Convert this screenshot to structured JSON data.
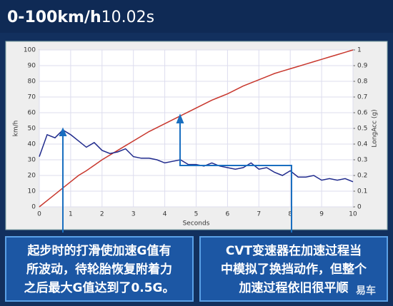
{
  "header": {
    "title": "0-100km/h",
    "value": "10.02s"
  },
  "chart_data": {
    "type": "line",
    "x": [
      0,
      0.25,
      0.5,
      0.75,
      1,
      1.25,
      1.5,
      1.75,
      2,
      2.25,
      2.5,
      2.75,
      3,
      3.25,
      3.5,
      3.75,
      4,
      4.25,
      4.5,
      4.75,
      5,
      5.25,
      5.5,
      5.75,
      6,
      6.25,
      6.5,
      6.75,
      7,
      7.25,
      7.5,
      7.75,
      8,
      8.25,
      8.5,
      8.75,
      9,
      9.25,
      9.5,
      9.75,
      10
    ],
    "xlabel": "Seconds",
    "ylabel": "km/h",
    "y2label": "LongAcc (g)",
    "xlim": [
      0,
      10
    ],
    "xticks": [
      0,
      1,
      2,
      3,
      4,
      5,
      6,
      7,
      8,
      9,
      10
    ],
    "ylim": [
      0,
      100
    ],
    "yticks": [
      0,
      10,
      20,
      30,
      40,
      50,
      60,
      70,
      80,
      90,
      100
    ],
    "y2lim": [
      0,
      1
    ],
    "y2ticks": [
      0,
      0.1,
      0.2,
      0.3,
      0.4,
      0.5,
      0.6,
      0.7,
      0.8,
      0.9,
      1
    ],
    "grid": true,
    "series": [
      {
        "color": "#c8372d",
        "values": [
          0,
          4,
          8,
          12,
          16,
          20,
          23,
          26.5,
          30,
          33,
          36,
          39,
          42,
          45,
          48,
          50.5,
          53,
          55.5,
          58,
          60.5,
          63,
          65.5,
          68,
          70,
          72,
          74.5,
          77,
          79,
          81,
          83,
          85,
          86.5,
          88,
          89.5,
          91,
          92.5,
          94,
          95.5,
          97,
          98.5,
          100
        ]
      },
      {
        "color": "#1f2a8c",
        "axis": "y2",
        "values": [
          0.32,
          0.46,
          0.44,
          0.49,
          0.46,
          0.42,
          0.38,
          0.41,
          0.36,
          0.34,
          0.35,
          0.37,
          0.32,
          0.31,
          0.31,
          0.3,
          0.28,
          0.29,
          0.3,
          0.27,
          0.27,
          0.26,
          0.28,
          0.26,
          0.25,
          0.24,
          0.25,
          0.28,
          0.24,
          0.25,
          0.22,
          0.2,
          0.23,
          0.19,
          0.19,
          0.2,
          0.17,
          0.18,
          0.17,
          0.18,
          0.16
        ]
      }
    ]
  },
  "notes": [
    {
      "lines": [
        "起步时的打滑使加速G值有",
        "所波动，待轮胎恢复附着力",
        "之后最大G值达到了0.5G。"
      ]
    },
    {
      "lines": [
        "CVT变速器在加速过程当",
        "中模拟了换挡动作，但整个",
        "加速过程依旧很平顺"
      ]
    }
  ],
  "watermark": "易车"
}
